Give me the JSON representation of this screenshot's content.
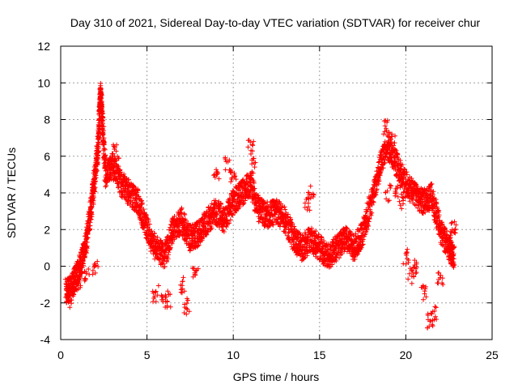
{
  "chart_data": {
    "type": "scatter",
    "title": "Day 310 of 2021, Sidereal Day-to-day VTEC variation (SDTVAR) for receiver chur",
    "xlabel": "GPS time / hours",
    "ylabel": "SDTVAR / TECUs",
    "xlim": [
      0,
      25
    ],
    "ylim": [
      -4,
      12
    ],
    "xticks": [
      0,
      5,
      10,
      15,
      20,
      25
    ],
    "yticks": [
      -4,
      -2,
      0,
      2,
      4,
      6,
      8,
      10,
      12
    ],
    "grid": true,
    "marker": "+",
    "colors": {
      "series": "#ff0000",
      "grid": "#a0a0a0",
      "axis": "#000000"
    },
    "series": [
      {
        "name": "SDTVAR",
        "trend": [
          [
            0.3,
            -1.3
          ],
          [
            0.6,
            -1.2
          ],
          [
            0.9,
            -0.5
          ],
          [
            1.2,
            0.2
          ],
          [
            1.5,
            1.5
          ],
          [
            1.8,
            3.5
          ],
          [
            2.0,
            5.0
          ],
          [
            2.2,
            7.0
          ],
          [
            2.3,
            9.5
          ],
          [
            2.4,
            8.0
          ],
          [
            2.6,
            5.0
          ],
          [
            3.0,
            5.5
          ],
          [
            3.5,
            4.5
          ],
          [
            4.0,
            4.0
          ],
          [
            4.5,
            3.5
          ],
          [
            5.0,
            2.0
          ],
          [
            5.5,
            1.0
          ],
          [
            6.0,
            0.5
          ],
          [
            6.5,
            2.0
          ],
          [
            7.0,
            2.5
          ],
          [
            7.5,
            1.5
          ],
          [
            8.0,
            1.8
          ],
          [
            8.5,
            2.5
          ],
          [
            9.0,
            3.0
          ],
          [
            9.5,
            2.5
          ],
          [
            10.0,
            3.5
          ],
          [
            10.5,
            4.0
          ],
          [
            11.0,
            4.5
          ],
          [
            11.5,
            3.0
          ],
          [
            12.0,
            2.8
          ],
          [
            12.5,
            3.0
          ],
          [
            13.0,
            2.5
          ],
          [
            13.5,
            1.5
          ],
          [
            14.0,
            1.0
          ],
          [
            14.5,
            1.5
          ],
          [
            15.0,
            1.0
          ],
          [
            15.5,
            0.5
          ],
          [
            16.0,
            1.0
          ],
          [
            16.5,
            1.5
          ],
          [
            17.0,
            1.0
          ],
          [
            17.5,
            1.8
          ],
          [
            18.0,
            3.5
          ],
          [
            18.5,
            5.5
          ],
          [
            19.0,
            6.5
          ],
          [
            19.5,
            5.5
          ],
          [
            20.0,
            4.5
          ],
          [
            20.5,
            4.0
          ],
          [
            21.0,
            3.5
          ],
          [
            21.5,
            3.8
          ],
          [
            22.0,
            2.0
          ],
          [
            22.5,
            1.0
          ],
          [
            22.8,
            0.5
          ]
        ],
        "extras": [
          [
            5.5,
            -1.5
          ],
          [
            6.0,
            -2.0
          ],
          [
            6.2,
            -1.8
          ],
          [
            7.0,
            -1.0
          ],
          [
            7.3,
            -2.2
          ],
          [
            7.8,
            -0.5
          ],
          [
            9.0,
            5.0
          ],
          [
            9.7,
            5.5
          ],
          [
            10.0,
            5.0
          ],
          [
            11.0,
            6.5
          ],
          [
            11.2,
            5.5
          ],
          [
            14.3,
            3.5
          ],
          [
            14.5,
            4.0
          ],
          [
            18.8,
            7.5
          ],
          [
            19.2,
            7.0
          ],
          [
            19.8,
            3.5
          ],
          [
            20.0,
            0.5
          ],
          [
            20.3,
            -0.5
          ],
          [
            20.5,
            0.0
          ],
          [
            21.0,
            -1.5
          ],
          [
            21.4,
            -3.0
          ],
          [
            21.6,
            -2.5
          ],
          [
            22.0,
            -0.8
          ],
          [
            22.5,
            1.5
          ],
          [
            22.8,
            2.0
          ],
          [
            19.0,
            4.0
          ],
          [
            19.5,
            4.2
          ],
          [
            3.2,
            6.2
          ],
          [
            2.0,
            0.0
          ],
          [
            1.5,
            -0.5
          ],
          [
            1.0,
            -1.0
          ],
          [
            0.5,
            -1.8
          ]
        ]
      }
    ]
  }
}
